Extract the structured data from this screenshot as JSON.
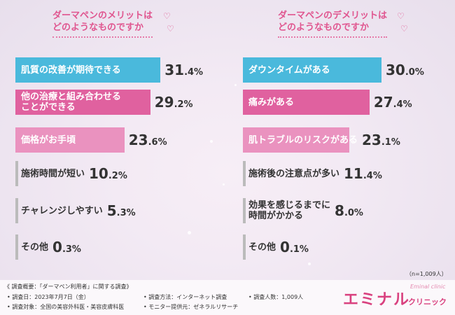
{
  "left_title": [
    "ダーマペンのメリットは",
    "どのようなものですか"
  ],
  "right_title": [
    "ダーマペンのデメリットは",
    "どのようなものですか"
  ],
  "chart_data": [
    {
      "type": "bar",
      "orientation": "horizontal",
      "title": "ダーマペンのメリットはどのようなものですか",
      "categories": [
        "肌質の改善が期待できる",
        "他の治療と組み合わせることができる",
        "価格がお手頃",
        "施術時間が短い",
        "チャレンジしやすい",
        "その他"
      ],
      "labels": [
        [
          "肌質の改善が期待できる"
        ],
        [
          "他の治療と組み合わせる",
          "ことができる"
        ],
        [
          "価格がお手頃"
        ],
        [
          "施術時間が短い"
        ],
        [
          "チャレンジしやすい"
        ],
        [
          "その他"
        ]
      ],
      "values": [
        31.4,
        29.2,
        23.6,
        10.2,
        5.3,
        0.3
      ],
      "value_text": [
        [
          "31",
          ".4%"
        ],
        [
          "29",
          ".2%"
        ],
        [
          "23",
          ".6%"
        ],
        [
          "10",
          ".2%"
        ],
        [
          "5",
          ".3%"
        ],
        [
          "0",
          ".3%"
        ]
      ],
      "colors": [
        "#4ab9dc",
        "#e0619f",
        "#ea92bf",
        "#d6d6d6",
        "#d6d6d6",
        "#d6d6d6"
      ],
      "unit": "%"
    },
    {
      "type": "bar",
      "orientation": "horizontal",
      "title": "ダーマペンのデメリットはどのようなものですか",
      "categories": [
        "ダウンタイムがある",
        "痛みがある",
        "肌トラブルのリスクがある",
        "施術後の注意点が多い",
        "効果を感じるまでに時間がかかる",
        "その他"
      ],
      "labels": [
        [
          "ダウンタイムがある"
        ],
        [
          "痛みがある"
        ],
        [
          "肌トラブルのリスクがある"
        ],
        [
          "施術後の注意点が多い"
        ],
        [
          "効果を感じるまでに",
          "時間がかかる"
        ],
        [
          "その他"
        ]
      ],
      "values": [
        30.0,
        27.4,
        23.1,
        11.4,
        8.0,
        0.1
      ],
      "value_text": [
        [
          "30",
          ".0%"
        ],
        [
          "27",
          ".4%"
        ],
        [
          "23",
          ".1%"
        ],
        [
          "11",
          ".4%"
        ],
        [
          "8",
          ".0%"
        ],
        [
          "0",
          ".1%"
        ]
      ],
      "colors": [
        "#4ab9dc",
        "#e0619f",
        "#ea92bf",
        "#d6d6d6",
        "#d6d6d6",
        "#d6d6d6"
      ],
      "unit": "%"
    }
  ],
  "sample_size": "（n=1,009人）",
  "survey": {
    "overview": "《 調査概要：「ダーマペン利用者」に関する調査》",
    "date": "• 調査日：2023年7月7日（金）",
    "target": "• 調査対象：全国の美容外科医・美容皮膚科医",
    "method": "• 調査方法：インターネット調査",
    "provider": "• モニター提供元：ゼネラルリサーチ",
    "count": "• 調査人数：1,009人"
  },
  "logo": {
    "main": "エミナル",
    "sub": "クリニック",
    "tag": "Eminal clinic"
  }
}
